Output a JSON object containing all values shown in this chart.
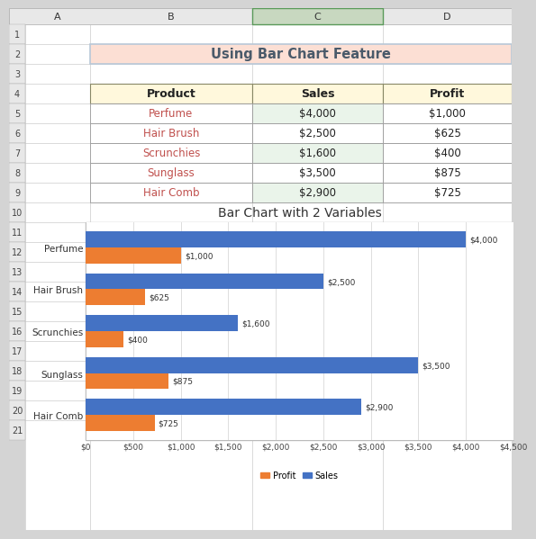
{
  "title_banner": "Using Bar Chart Feature",
  "title_banner_bg": "#FCDFD4",
  "title_banner_border": "#B8C8D8",
  "table_headers": [
    "Product",
    "Sales",
    "Profit"
  ],
  "table_header_bg": "#FFF8DC",
  "table_products": [
    "Perfume",
    "Hair Brush",
    "Scrunchies",
    "Sunglass",
    "Hair Comb"
  ],
  "table_sales": [
    "$4,000",
    "$2,500",
    "$1,600",
    "$3,500",
    "$2,900"
  ],
  "table_profits": [
    "$1,000",
    "$625",
    "$400",
    "$875",
    "$725"
  ],
  "table_sales_bg_alt": "#EAF4EA",
  "product_color": "#C0504D",
  "chart_title": "Bar Chart with 2 Variables",
  "chart_products": [
    "Hair Comb",
    "Sunglass",
    "Scrunchies",
    "Hair Brush",
    "Perfume"
  ],
  "sales_values": [
    2900,
    3500,
    1600,
    2500,
    4000
  ],
  "profit_values": [
    725,
    875,
    400,
    625,
    1000
  ],
  "sales_labels": [
    "$2,900",
    "$3,500",
    "$1,600",
    "$2,500",
    "$4,000"
  ],
  "profit_labels": [
    "$725",
    "$875",
    "$400",
    "$625",
    "$1,000"
  ],
  "sales_color": "#4472C4",
  "profit_color": "#ED7D31",
  "xlim": [
    0,
    4500
  ],
  "xticks": [
    0,
    500,
    1000,
    1500,
    2000,
    2500,
    3000,
    3500,
    4000,
    4500
  ],
  "xtick_labels": [
    "$0",
    "$500",
    "$1,000",
    "$1,500",
    "$2,000",
    "$2,500",
    "$3,000",
    "$3,500",
    "$4,000",
    "$4,500"
  ],
  "excel_bg": "#D4D4D4",
  "sheet_bg": "#FFFFFF",
  "col_header_bg": "#E8E8E8",
  "col_header_selected": "#C8D8C0",
  "row_header_bg": "#E8E8E8",
  "grid_line": "#C0C0C0",
  "chart_border": "#C8C8C8",
  "bar_height": 0.38
}
